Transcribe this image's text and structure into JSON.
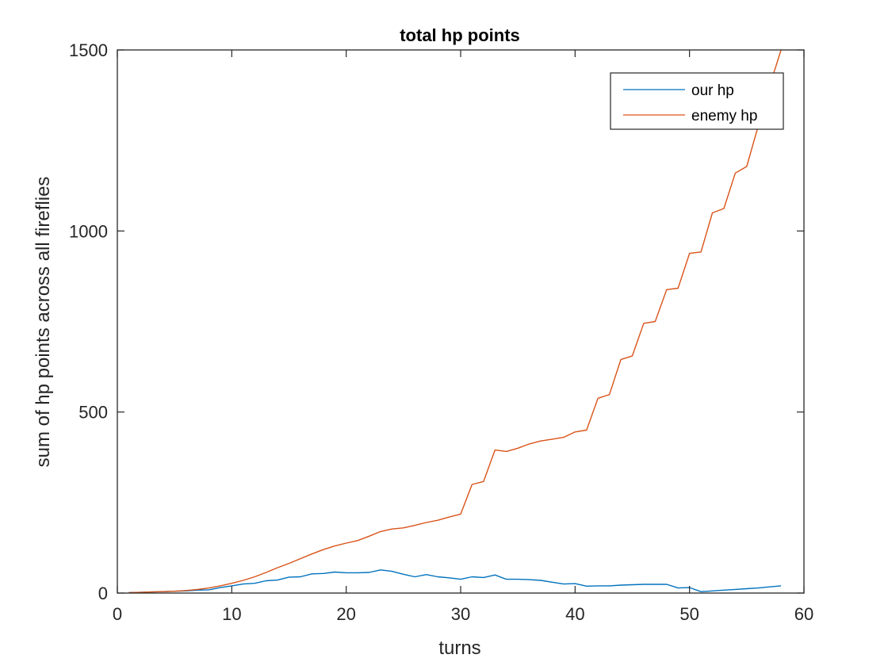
{
  "chart_data": {
    "type": "line",
    "title": "total hp points",
    "xlabel": "turns",
    "ylabel": "sum of hp points across all fireflies",
    "xlim": [
      0,
      60
    ],
    "ylim": [
      0,
      1500
    ],
    "xticks": [
      0,
      10,
      20,
      30,
      40,
      50,
      60
    ],
    "yticks": [
      0,
      500,
      1000,
      1500
    ],
    "xtick_labels": [
      "0",
      "10",
      "20",
      "30",
      "40",
      "50",
      "60"
    ],
    "ytick_labels": [
      "0",
      "500",
      "1000",
      "1500"
    ],
    "grid": false,
    "legend_position": "top-right",
    "series": [
      {
        "name": "our hp",
        "color": "#0072BD",
        "x": [
          1,
          2,
          3,
          4,
          5,
          6,
          7,
          8,
          9,
          10,
          11,
          12,
          13,
          14,
          15,
          16,
          17,
          18,
          19,
          20,
          21,
          22,
          23,
          24,
          25,
          26,
          27,
          28,
          29,
          30,
          31,
          32,
          33,
          34,
          35,
          36,
          37,
          38,
          39,
          40,
          41,
          42,
          43,
          44,
          45,
          46,
          47,
          48,
          49,
          50,
          51,
          52,
          53,
          54,
          55,
          56,
          57,
          58
        ],
        "y": [
          1,
          2,
          3,
          4,
          5,
          6,
          8,
          9,
          15,
          20,
          25,
          27,
          34,
          36,
          44,
          45,
          53,
          54,
          58,
          56,
          56,
          57,
          64,
          60,
          52,
          45,
          51,
          45,
          42,
          38,
          45,
          43,
          50,
          38,
          38,
          37,
          35,
          30,
          25,
          26,
          19,
          20,
          20,
          22,
          23,
          24,
          24,
          24,
          14,
          15,
          4,
          6,
          8,
          10,
          12,
          14,
          17,
          20
        ]
      },
      {
        "name": "enemy hp",
        "color": "#D95319",
        "x": [
          1,
          2,
          3,
          4,
          5,
          6,
          7,
          8,
          9,
          10,
          11,
          12,
          13,
          14,
          15,
          16,
          17,
          18,
          19,
          20,
          21,
          22,
          23,
          24,
          25,
          26,
          27,
          28,
          29,
          30,
          31,
          32,
          33,
          34,
          35,
          36,
          37,
          38,
          39,
          40,
          41,
          42,
          43,
          44,
          45,
          46,
          47,
          48,
          49,
          50,
          51,
          52,
          53,
          54,
          55,
          56,
          57,
          58
        ],
        "y": [
          1,
          2,
          3,
          4,
          5,
          7,
          10,
          14,
          20,
          27,
          35,
          45,
          57,
          70,
          82,
          95,
          108,
          120,
          130,
          138,
          145,
          157,
          170,
          177,
          180,
          187,
          195,
          201,
          210,
          218,
          300,
          308,
          395,
          391,
          400,
          412,
          420,
          425,
          430,
          445,
          450,
          538,
          548,
          645,
          655,
          745,
          750,
          838,
          842,
          938,
          942,
          1050,
          1062,
          1160,
          1178,
          1290,
          1400,
          1500
        ]
      }
    ]
  }
}
